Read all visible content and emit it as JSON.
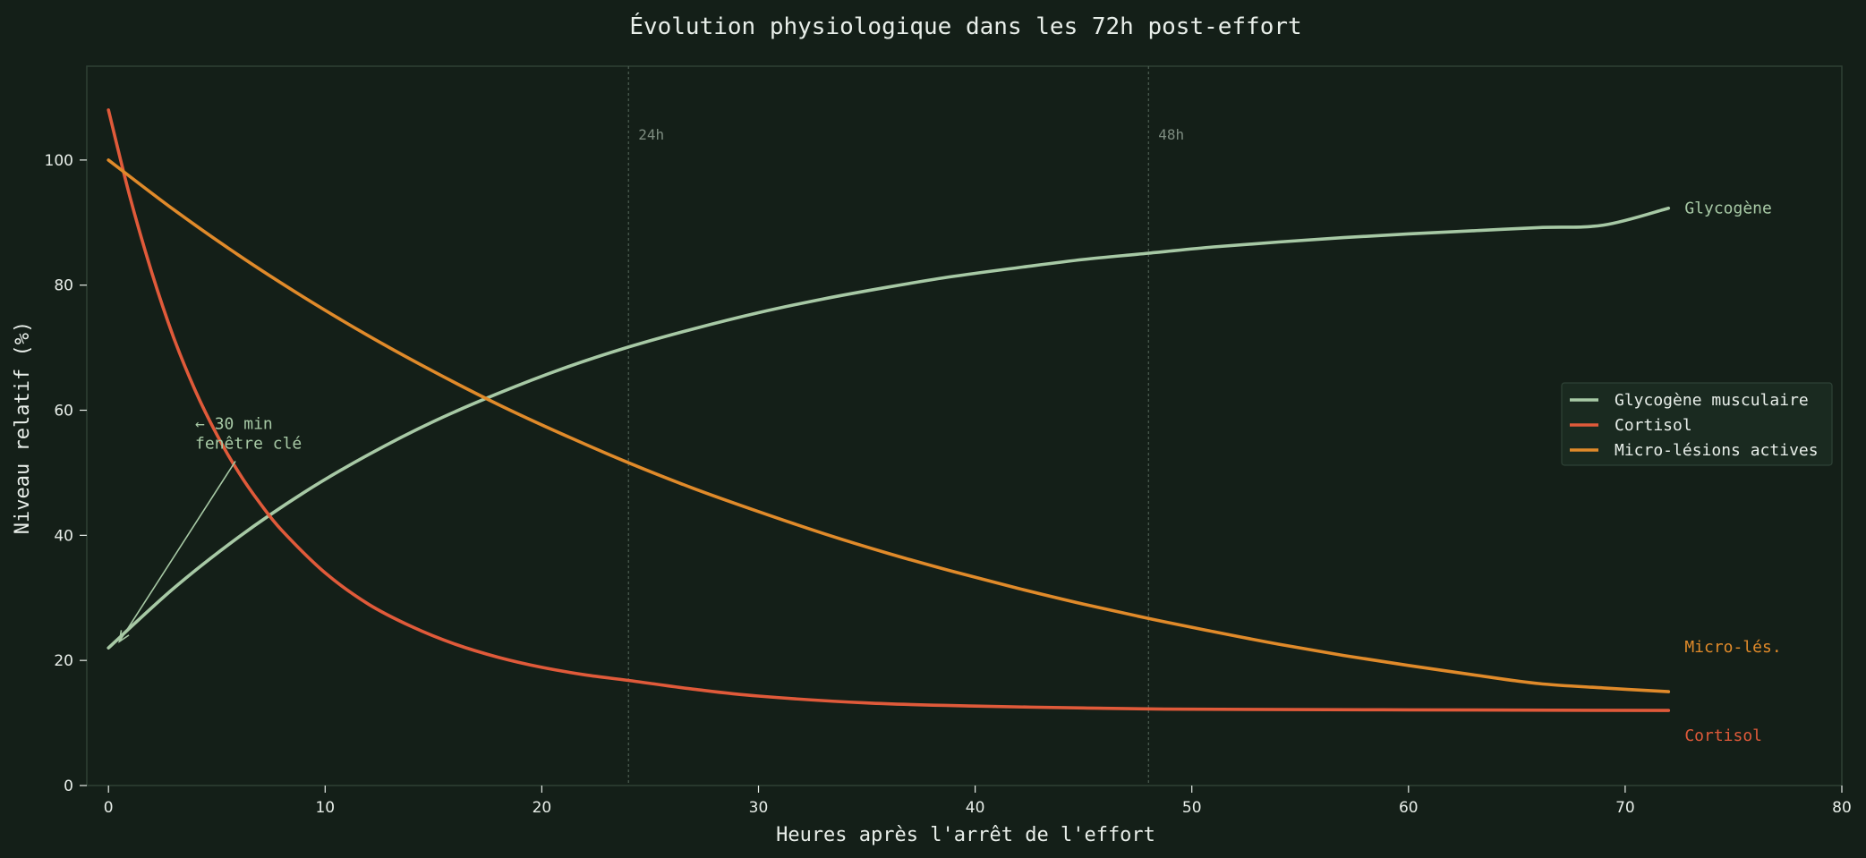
{
  "chart_data": {
    "type": "line",
    "title": "Évolution physiologique dans les 72h post-effort",
    "xlabel": "Heures après l'arrêt de l'effort",
    "ylabel": "Niveau relatif (%)",
    "xlim": [
      -1,
      80
    ],
    "ylim": [
      0,
      115
    ],
    "xticks": [
      0,
      10,
      20,
      30,
      40,
      50,
      60,
      70,
      80
    ],
    "yticks": [
      0,
      20,
      40,
      60,
      80,
      100
    ],
    "grid": false,
    "legend_position": "center-right",
    "colors": {
      "background": "#141f18",
      "text": "#e8eee9",
      "glycogene": "#a7c9a5",
      "cortisol": "#e05a3a",
      "micro": "#e08a2a",
      "reference_line": "#4d5e52",
      "reference_text": "#7d8c80"
    },
    "series": [
      {
        "name": "Glycogène musculaire",
        "key": "glycogene",
        "end_label": "Glycogène",
        "x": [
          0,
          3,
          6,
          9,
          12,
          15,
          18,
          21,
          24,
          27,
          30,
          33,
          36,
          39,
          42,
          45,
          48,
          51,
          54,
          57,
          60,
          63,
          66,
          69,
          72
        ],
        "values": [
          22,
          31.5,
          39.7,
          46.8,
          52.9,
          58.2,
          62.7,
          66.7,
          70.1,
          73,
          75.6,
          77.8,
          79.7,
          81.4,
          82.8,
          84.1,
          85.1,
          86.1,
          86.9,
          87.6,
          88.2,
          88.7,
          89.2,
          89.6,
          92.3
        ]
      },
      {
        "name": "Cortisol",
        "key": "cortisol",
        "end_label": "Cortisol",
        "x": [
          0,
          1,
          2,
          3,
          4,
          5,
          6,
          7,
          8,
          10,
          12,
          14,
          16,
          18,
          20,
          22,
          24,
          27,
          30,
          35,
          40,
          45,
          50,
          60,
          72
        ],
        "values": [
          108,
          94,
          82,
          71.7,
          63.2,
          56.1,
          50.1,
          45.1,
          40.8,
          34,
          29,
          25.4,
          22.6,
          20.5,
          18.9,
          17.7,
          16.8,
          15.4,
          14.3,
          13.2,
          12.7,
          12.4,
          12.2,
          12.1,
          12
        ]
      },
      {
        "name": "Micro-lésions actives",
        "key": "micro",
        "end_label": "Micro-lés.",
        "x": [
          0,
          3,
          6,
          9,
          12,
          15,
          18,
          21,
          24,
          27,
          30,
          33,
          36,
          39,
          42,
          45,
          48,
          51,
          54,
          57,
          60,
          63,
          66,
          69,
          72
        ],
        "values": [
          100,
          92.1,
          84.8,
          78.1,
          71.9,
          66.2,
          60.9,
          56.1,
          51.6,
          47.5,
          43.8,
          40.3,
          37.1,
          34.2,
          31.5,
          29,
          26.7,
          24.6,
          22.6,
          20.8,
          19.2,
          17.7,
          16.3,
          15.6,
          15
        ]
      }
    ],
    "reference_lines": [
      {
        "x": 24,
        "label": "24h"
      },
      {
        "x": 48,
        "label": "48h"
      }
    ],
    "annotation": {
      "lines": [
        "← 30 min",
        "fenêtre clé"
      ],
      "text_at": [
        4,
        57
      ],
      "arrow_to": [
        0.5,
        23
      ]
    }
  }
}
